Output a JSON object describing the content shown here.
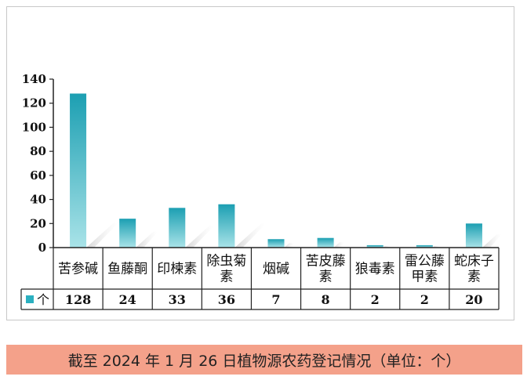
{
  "chart_data": {
    "type": "bar",
    "categories": [
      [
        "苦参碱"
      ],
      [
        "鱼藤酮"
      ],
      [
        "印楝素"
      ],
      [
        "除虫菊",
        "素"
      ],
      [
        "烟碱"
      ],
      [
        "苦皮藤",
        "素"
      ],
      [
        "狼毒素"
      ],
      [
        "雷公藤",
        "甲素"
      ],
      [
        "蛇床子",
        "素"
      ]
    ],
    "series": [
      {
        "name": "个",
        "values": [
          128,
          24,
          33,
          36,
          7,
          8,
          2,
          2,
          20
        ],
        "color": "#2bb0c0"
      }
    ],
    "ylim": [
      0,
      140
    ],
    "yticks": [
      0,
      20,
      40,
      60,
      80,
      100,
      120,
      140
    ],
    "legend_placement": "data-table-left",
    "data_table": true,
    "grid": false
  },
  "caption": {
    "text": "截至 2024 年 1 月 26 日植物源农药登记情况（单位：个）",
    "background": "#f4a18a"
  }
}
